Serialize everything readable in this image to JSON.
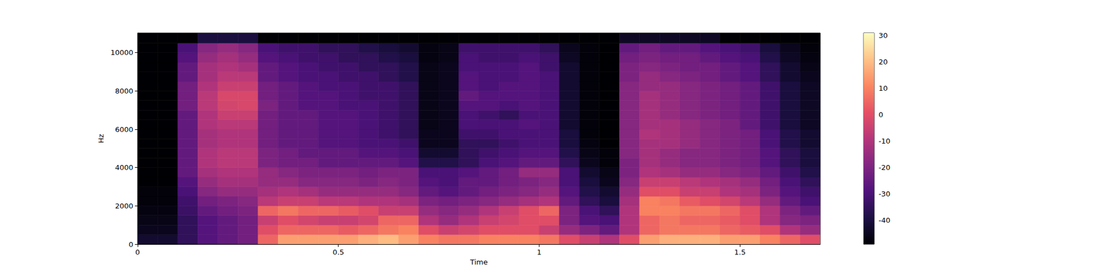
{
  "chart_data": {
    "type": "spectrogram",
    "xlabel": "Time",
    "ylabel": "Hz",
    "xlim": [
      0,
      1.7
    ],
    "xticks": [
      0,
      0.5,
      1,
      1.5
    ],
    "ylim": [
      0,
      11025
    ],
    "yticks": [
      0,
      2000,
      4000,
      6000,
      8000,
      10000
    ],
    "time_edges": [
      0,
      0.05,
      0.1,
      0.15,
      0.2,
      0.25,
      0.3,
      0.35,
      0.4,
      0.45,
      0.5,
      0.55,
      0.6,
      0.65,
      0.7,
      0.75,
      0.8,
      0.85,
      0.9,
      0.95,
      1.0,
      1.05,
      1.1,
      1.15,
      1.2,
      1.25,
      1.3,
      1.35,
      1.4,
      1.45,
      1.5,
      1.55,
      1.6,
      1.65,
      1.7
    ],
    "freq_edges": [
      0,
      500,
      1000,
      1500,
      2000,
      2500,
      3000,
      3500,
      4000,
      4500,
      5000,
      5500,
      6000,
      6500,
      7000,
      7500,
      8000,
      8500,
      9000,
      9500,
      10000,
      10500,
      11025
    ],
    "values": [
      [
        -42,
        -42,
        -35,
        -28,
        -25,
        -22,
        5,
        15,
        15,
        15,
        15,
        18,
        20,
        15,
        10,
        8,
        8,
        10,
        10,
        10,
        8,
        0,
        -5,
        -10,
        0,
        15,
        18,
        18,
        18,
        15,
        15,
        10,
        5,
        0
      ],
      [
        -45,
        -45,
        -35,
        -28,
        -25,
        -22,
        0,
        5,
        5,
        5,
        3,
        5,
        8,
        10,
        0,
        -5,
        -3,
        0,
        0,
        0,
        -5,
        -15,
        -20,
        -25,
        -10,
        5,
        8,
        8,
        8,
        5,
        3,
        0,
        -10,
        -15
      ],
      [
        -46,
        -46,
        -35,
        -28,
        -25,
        -22,
        -5,
        0,
        -3,
        -5,
        -5,
        -3,
        5,
        5,
        -10,
        -15,
        -10,
        -5,
        -3,
        0,
        0,
        -20,
        -28,
        -30,
        -10,
        5,
        8,
        5,
        5,
        3,
        0,
        -10,
        -18,
        -20
      ],
      [
        -47,
        -47,
        -33,
        -25,
        -22,
        -20,
        5,
        8,
        5,
        5,
        3,
        0,
        -5,
        -5,
        -15,
        -18,
        -15,
        -10,
        -5,
        0,
        5,
        -20,
        -30,
        -35,
        -10,
        10,
        10,
        8,
        8,
        5,
        0,
        -10,
        -20,
        -25
      ],
      [
        -48,
        -48,
        -32,
        -22,
        -20,
        -18,
        -8,
        -5,
        -5,
        -8,
        -8,
        -10,
        -10,
        -12,
        -20,
        -22,
        -20,
        -18,
        -15,
        -12,
        -10,
        -25,
        -35,
        -40,
        -12,
        10,
        8,
        3,
        0,
        -3,
        -8,
        -15,
        -25,
        -30
      ],
      [
        -48,
        -48,
        -30,
        -18,
        -15,
        -15,
        -12,
        -10,
        -12,
        -15,
        -15,
        -15,
        -15,
        -18,
        -25,
        -28,
        -25,
        -22,
        -20,
        -18,
        -15,
        -28,
        -38,
        -42,
        -15,
        0,
        0,
        -5,
        -5,
        -10,
        -12,
        -20,
        -28,
        -32
      ],
      [
        -49,
        -49,
        -28,
        -15,
        -12,
        -12,
        -15,
        -15,
        -18,
        -18,
        -18,
        -20,
        -18,
        -20,
        -28,
        -30,
        -25,
        -25,
        -22,
        -20,
        -18,
        -30,
        -40,
        -45,
        -18,
        -5,
        -5,
        -8,
        -10,
        -12,
        -15,
        -22,
        -30,
        -35
      ],
      [
        -49,
        -49,
        -25,
        -12,
        -10,
        -10,
        -15,
        -18,
        -20,
        -20,
        -20,
        -22,
        -20,
        -20,
        -30,
        -30,
        -28,
        -25,
        -22,
        -15,
        -15,
        -30,
        -42,
        -46,
        -20,
        -10,
        -12,
        -15,
        -15,
        -18,
        -20,
        -25,
        -32,
        -38
      ],
      [
        -49,
        -49,
        -25,
        -10,
        -8,
        -8,
        -20,
        -22,
        -22,
        -25,
        -25,
        -25,
        -25,
        -28,
        -38,
        -38,
        -35,
        -30,
        -28,
        -25,
        -25,
        -35,
        -45,
        -48,
        -20,
        -12,
        -15,
        -18,
        -18,
        -20,
        -22,
        -28,
        -35,
        -40
      ],
      [
        -49,
        -49,
        -25,
        -10,
        -8,
        -8,
        -20,
        -22,
        -25,
        -25,
        -25,
        -28,
        -28,
        -30,
        -42,
        -42,
        -35,
        -32,
        -30,
        -28,
        -28,
        -38,
        -46,
        -48,
        -18,
        -12,
        -15,
        -18,
        -18,
        -20,
        -22,
        -28,
        -35,
        -40
      ],
      [
        -49,
        -49,
        -25,
        -12,
        -10,
        -10,
        -22,
        -25,
        -25,
        -28,
        -28,
        -30,
        -30,
        -32,
        -45,
        -45,
        -35,
        -35,
        -32,
        -30,
        -30,
        -40,
        -47,
        -49,
        -18,
        -12,
        -12,
        -15,
        -18,
        -20,
        -22,
        -30,
        -38,
        -42
      ],
      [
        -49,
        -49,
        -25,
        -12,
        -10,
        -10,
        -22,
        -25,
        -25,
        -28,
        -28,
        -30,
        -32,
        -35,
        -45,
        -45,
        -32,
        -32,
        -30,
        -30,
        -30,
        -40,
        -48,
        -49,
        -18,
        -10,
        -12,
        -15,
        -18,
        -20,
        -22,
        -30,
        -38,
        -42
      ],
      [
        -49,
        -49,
        -25,
        -10,
        -8,
        -8,
        -22,
        -25,
        -25,
        -28,
        -28,
        -30,
        -32,
        -35,
        -46,
        -45,
        -30,
        -30,
        -30,
        -28,
        -30,
        -42,
        -48,
        -49,
        -18,
        -12,
        -12,
        -15,
        -18,
        -20,
        -25,
        -32,
        -40,
        -44
      ],
      [
        -49,
        -49,
        -25,
        -10,
        -5,
        -5,
        -22,
        -25,
        -25,
        -28,
        -28,
        -30,
        -32,
        -35,
        -46,
        -45,
        -30,
        -32,
        -35,
        -30,
        -30,
        -42,
        -48,
        -49,
        -18,
        -12,
        -15,
        -18,
        -20,
        -22,
        -25,
        -32,
        -40,
        -44
      ],
      [
        -49,
        -49,
        -22,
        -8,
        -3,
        -2,
        -20,
        -25,
        -28,
        -28,
        -30,
        -30,
        -32,
        -35,
        -46,
        -45,
        -28,
        -28,
        -30,
        -28,
        -30,
        -42,
        -48,
        -49,
        -18,
        -12,
        -15,
        -18,
        -20,
        -22,
        -25,
        -32,
        -40,
        -44
      ],
      [
        -49,
        -49,
        -22,
        -8,
        -2,
        -2,
        -22,
        -25,
        -28,
        -28,
        -30,
        -32,
        -32,
        -35,
        -46,
        -45,
        -25,
        -28,
        -28,
        -28,
        -30,
        -42,
        -48,
        -49,
        -18,
        -12,
        -15,
        -18,
        -20,
        -22,
        -25,
        -32,
        -40,
        -44
      ],
      [
        -49,
        -49,
        -22,
        -10,
        -5,
        -5,
        -22,
        -25,
        -28,
        -30,
        -30,
        -32,
        -32,
        -35,
        -46,
        -45,
        -28,
        -30,
        -28,
        -28,
        -30,
        -42,
        -48,
        -49,
        -18,
        -15,
        -15,
        -18,
        -20,
        -22,
        -25,
        -32,
        -40,
        -44
      ],
      [
        -49,
        -49,
        -25,
        -12,
        -8,
        -8,
        -25,
        -28,
        -30,
        -30,
        -32,
        -32,
        -35,
        -38,
        -46,
        -45,
        -28,
        -30,
        -30,
        -28,
        -30,
        -42,
        -48,
        -49,
        -20,
        -15,
        -18,
        -20,
        -22,
        -25,
        -28,
        -35,
        -42,
        -45
      ],
      [
        -49,
        -49,
        -25,
        -12,
        -10,
        -12,
        -25,
        -28,
        -30,
        -32,
        -32,
        -35,
        -35,
        -38,
        -46,
        -45,
        -30,
        -30,
        -30,
        -28,
        -32,
        -42,
        -48,
        -49,
        -20,
        -18,
        -20,
        -22,
        -22,
        -25,
        -28,
        -35,
        -42,
        -46
      ],
      [
        -49,
        -49,
        -28,
        -15,
        -12,
        -15,
        -28,
        -30,
        -32,
        -32,
        -35,
        -35,
        -38,
        -40,
        -47,
        -46,
        -30,
        -32,
        -32,
        -30,
        -32,
        -44,
        -48,
        -49,
        -22,
        -20,
        -22,
        -22,
        -25,
        -28,
        -30,
        -38,
        -44,
        -47
      ],
      [
        -49,
        -49,
        -30,
        -18,
        -15,
        -18,
        -30,
        -32,
        -32,
        -35,
        -35,
        -38,
        -40,
        -42,
        -47,
        -46,
        -32,
        -32,
        -32,
        -32,
        -35,
        -45,
        -48,
        -49,
        -25,
        -22,
        -25,
        -25,
        -28,
        -30,
        -32,
        -40,
        -45,
        -48
      ],
      [
        -49,
        -49,
        -49,
        -40,
        -40,
        -40,
        -49,
        -49,
        -49,
        -49,
        -49,
        -49,
        -49,
        -49,
        -49,
        -49,
        -49,
        -49,
        -49,
        -49,
        -49,
        -49,
        -49,
        -49,
        -44,
        -44,
        -44,
        -44,
        -44,
        -49,
        -49,
        -49,
        -49,
        -49
      ]
    ],
    "colorbar": {
      "range": [
        -49,
        31
      ],
      "ticks": [
        -40,
        -30,
        -20,
        -10,
        0,
        10,
        20,
        30
      ]
    }
  }
}
